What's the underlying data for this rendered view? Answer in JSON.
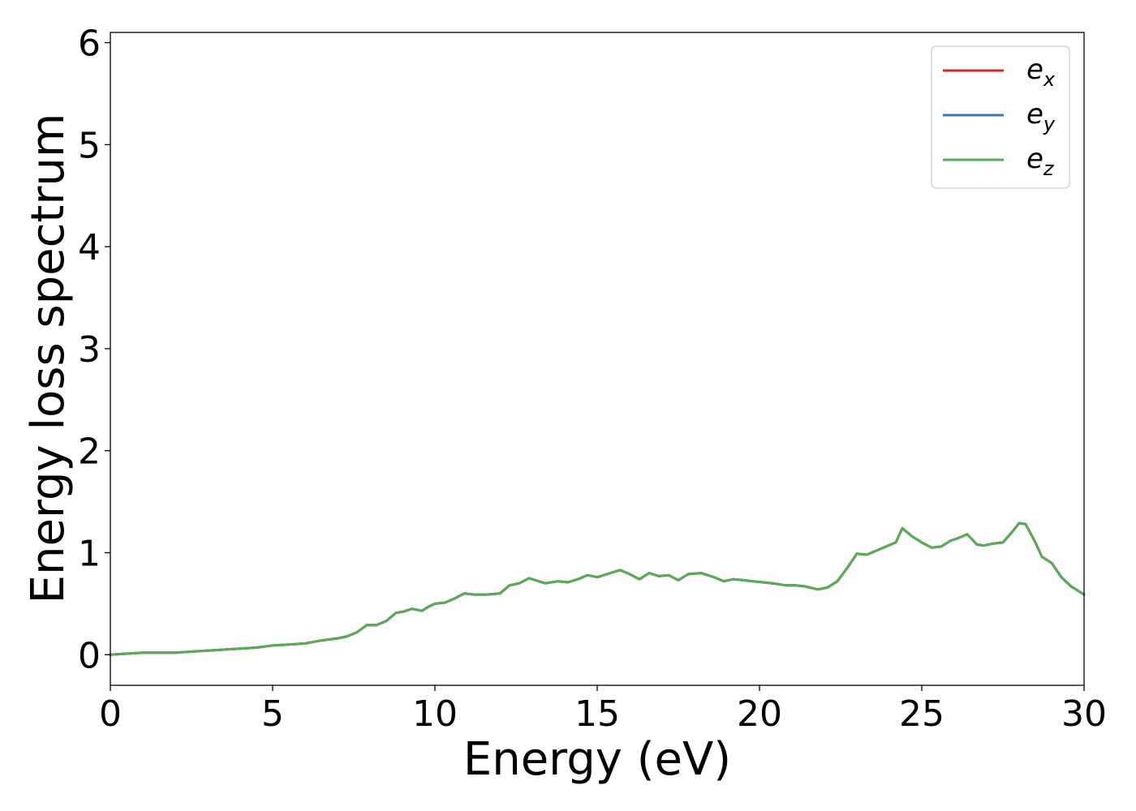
{
  "chart_data": {
    "type": "line",
    "title": "",
    "xlabel": "Energy (eV)",
    "ylabel": "Energy loss spectrum",
    "xlim": [
      0,
      30
    ],
    "ylim": [
      -0.3,
      6.1
    ],
    "xticks": [
      0,
      5,
      10,
      15,
      20,
      25,
      30
    ],
    "yticks": [
      0,
      1,
      2,
      3,
      4,
      5,
      6
    ],
    "grid": false,
    "legend": "top-right",
    "x": [
      0,
      0.5,
      1,
      1.5,
      2,
      2.5,
      3,
      3.5,
      4,
      4.5,
      5,
      5.5,
      6,
      6.5,
      7,
      7.3,
      7.6,
      7.9,
      8.2,
      8.5,
      8.8,
      9.0,
      9.3,
      9.6,
      9.8,
      10.0,
      10.3,
      10.6,
      10.9,
      11.2,
      11.6,
      12.0,
      12.3,
      12.6,
      12.9,
      13.1,
      13.4,
      13.8,
      14.1,
      14.4,
      14.7,
      15.0,
      15.3,
      15.7,
      16.0,
      16.3,
      16.6,
      16.9,
      17.2,
      17.5,
      17.8,
      18.2,
      18.6,
      18.9,
      19.2,
      19.5,
      19.8,
      20.1,
      20.4,
      20.8,
      21.1,
      21.4,
      21.8,
      22.1,
      22.4,
      22.7,
      23.0,
      23.3,
      23.6,
      23.9,
      24.2,
      24.4,
      24.7,
      25.0,
      25.3,
      25.6,
      25.9,
      26.1,
      26.4,
      26.7,
      26.9,
      27.2,
      27.5,
      27.8,
      28.0,
      28.2,
      28.5,
      28.7,
      29.0,
      29.3,
      29.6,
      30.0
    ],
    "series": [
      {
        "name": "e",
        "sub": "x",
        "color": "#d62728",
        "values": [
          0.0,
          0.01,
          0.02,
          0.02,
          0.02,
          0.03,
          0.04,
          0.05,
          0.06,
          0.07,
          0.09,
          0.1,
          0.11,
          0.14,
          0.16,
          0.18,
          0.22,
          0.29,
          0.29,
          0.33,
          0.41,
          0.42,
          0.45,
          0.43,
          0.47,
          0.5,
          0.51,
          0.55,
          0.6,
          0.59,
          0.59,
          0.6,
          0.68,
          0.7,
          0.75,
          0.73,
          0.7,
          0.72,
          0.71,
          0.74,
          0.78,
          0.76,
          0.79,
          0.83,
          0.79,
          0.74,
          0.8,
          0.77,
          0.78,
          0.73,
          0.79,
          0.8,
          0.76,
          0.72,
          0.74,
          0.73,
          0.72,
          0.71,
          0.7,
          0.68,
          0.68,
          0.67,
          0.64,
          0.66,
          0.72,
          0.85,
          0.99,
          0.98,
          1.02,
          1.06,
          1.1,
          1.24,
          1.16,
          1.1,
          1.05,
          1.06,
          1.12,
          1.14,
          1.18,
          1.08,
          1.07,
          1.09,
          1.1,
          1.21,
          1.29,
          1.28,
          1.1,
          0.96,
          0.9,
          0.76,
          0.67,
          0.59
        ]
      },
      {
        "name": "e",
        "sub": "y",
        "color": "#3a78b5",
        "values": [
          0.0,
          0.01,
          0.02,
          0.02,
          0.02,
          0.03,
          0.04,
          0.05,
          0.06,
          0.07,
          0.09,
          0.1,
          0.11,
          0.14,
          0.16,
          0.18,
          0.22,
          0.29,
          0.29,
          0.33,
          0.41,
          0.42,
          0.45,
          0.43,
          0.47,
          0.5,
          0.51,
          0.55,
          0.6,
          0.59,
          0.59,
          0.6,
          0.68,
          0.7,
          0.75,
          0.73,
          0.7,
          0.72,
          0.71,
          0.74,
          0.78,
          0.76,
          0.79,
          0.83,
          0.79,
          0.74,
          0.8,
          0.77,
          0.78,
          0.73,
          0.79,
          0.8,
          0.76,
          0.72,
          0.74,
          0.73,
          0.72,
          0.71,
          0.7,
          0.68,
          0.68,
          0.67,
          0.64,
          0.66,
          0.72,
          0.85,
          0.99,
          0.98,
          1.02,
          1.06,
          1.1,
          1.24,
          1.16,
          1.1,
          1.05,
          1.06,
          1.12,
          1.14,
          1.18,
          1.08,
          1.07,
          1.09,
          1.1,
          1.21,
          1.29,
          1.28,
          1.1,
          0.96,
          0.9,
          0.76,
          0.67,
          0.59
        ]
      },
      {
        "name": "e",
        "sub": "z",
        "color": "#5aab55",
        "values": [
          0.0,
          0.01,
          0.02,
          0.02,
          0.02,
          0.03,
          0.04,
          0.05,
          0.06,
          0.07,
          0.09,
          0.1,
          0.11,
          0.14,
          0.16,
          0.18,
          0.22,
          0.29,
          0.29,
          0.33,
          0.41,
          0.42,
          0.45,
          0.43,
          0.47,
          0.5,
          0.51,
          0.55,
          0.6,
          0.59,
          0.59,
          0.6,
          0.68,
          0.7,
          0.75,
          0.73,
          0.7,
          0.72,
          0.71,
          0.74,
          0.78,
          0.76,
          0.79,
          0.83,
          0.79,
          0.74,
          0.8,
          0.77,
          0.78,
          0.73,
          0.79,
          0.8,
          0.76,
          0.72,
          0.74,
          0.73,
          0.72,
          0.71,
          0.7,
          0.68,
          0.68,
          0.67,
          0.64,
          0.66,
          0.72,
          0.85,
          0.99,
          0.98,
          1.02,
          1.06,
          1.1,
          1.24,
          1.16,
          1.1,
          1.05,
          1.06,
          1.12,
          1.14,
          1.18,
          1.08,
          1.07,
          1.09,
          1.1,
          1.21,
          1.29,
          1.28,
          1.1,
          0.96,
          0.9,
          0.76,
          0.67,
          0.59
        ]
      }
    ]
  }
}
